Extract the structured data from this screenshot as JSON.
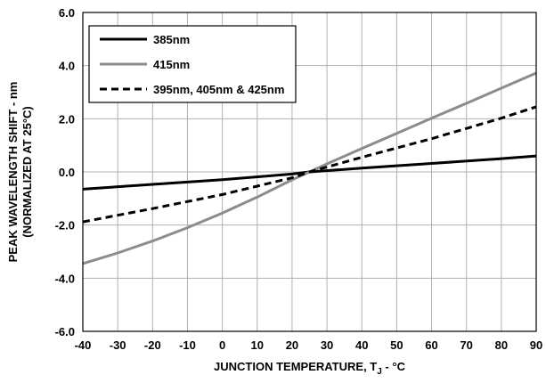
{
  "chart_data": {
    "type": "line",
    "xlabel": "JUNCTION TEMPERATURE, T",
    "xlabel_sub": "J",
    "xlabel_suffix": " - °C",
    "ylabel_line1": "PEAK WAVELENGTH SHIFT - nm",
    "ylabel_line2": "(NORMALIZED AT 25°C)",
    "xlim": [
      -40,
      90
    ],
    "ylim": [
      -6,
      6
    ],
    "x_ticks": [
      "-40",
      "-30",
      "-20",
      "-10",
      "0",
      "10",
      "20",
      "30",
      "40",
      "50",
      "60",
      "70",
      "80",
      "90"
    ],
    "y_ticks": [
      "-6.0",
      "-4.0",
      "-2.0",
      "0.0",
      "2.0",
      "4.0",
      "6.0"
    ],
    "grid": true,
    "legend_position": "top-left",
    "series": [
      {
        "name": "385nm",
        "color": "#000000",
        "style": "solid",
        "x": [
          -40,
          -20,
          0,
          20,
          25,
          40,
          60,
          80,
          90
        ],
        "y": [
          -0.65,
          -0.47,
          -0.29,
          -0.08,
          0.0,
          0.14,
          0.32,
          0.5,
          0.6
        ]
      },
      {
        "name": "415nm",
        "color": "#8c8c8c",
        "style": "solid",
        "x": [
          -40,
          -30,
          -20,
          -10,
          0,
          10,
          20,
          25,
          30,
          40,
          50,
          60,
          70,
          80,
          90
        ],
        "y": [
          -3.45,
          -3.05,
          -2.6,
          -2.1,
          -1.55,
          -0.95,
          -0.3,
          0.0,
          0.3,
          0.88,
          1.45,
          2.02,
          2.58,
          3.15,
          3.72
        ]
      },
      {
        "name": "395nm, 405nm & 425nm",
        "color": "#000000",
        "style": "dashed",
        "x": [
          -40,
          -20,
          0,
          20,
          25,
          40,
          60,
          80,
          90
        ],
        "y": [
          -1.88,
          -1.38,
          -0.85,
          -0.22,
          0.0,
          0.55,
          1.25,
          2.02,
          2.45
        ]
      }
    ]
  }
}
